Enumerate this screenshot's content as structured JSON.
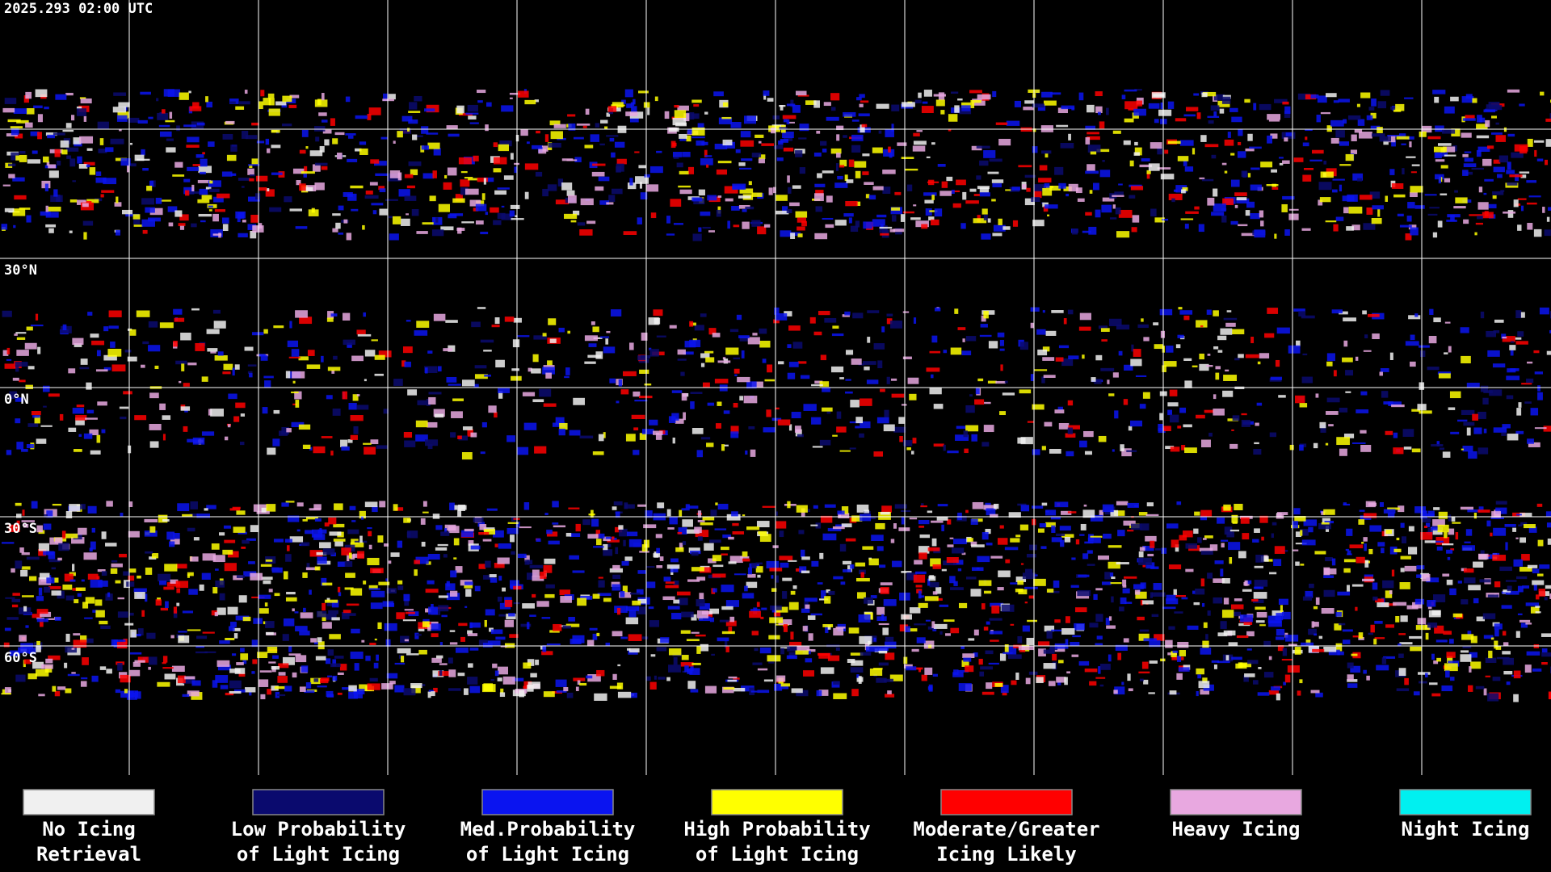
{
  "timestamp": "2025.293 02:00 UTC",
  "latitude_labels": [
    "30°N",
    "0°N",
    "30°S",
    "60°S"
  ],
  "legend": [
    {
      "color": "#f0f0f0",
      "label_lines": [
        "No Icing",
        "Retrieval"
      ]
    },
    {
      "color": "#0a0a6e",
      "label_lines": [
        "Low Probability",
        "of Light Icing"
      ]
    },
    {
      "color": "#0a14f0",
      "label_lines": [
        "Med.Probability",
        "of Light Icing"
      ]
    },
    {
      "color": "#ffff00",
      "label_lines": [
        "High Probability",
        "of Light Icing"
      ]
    },
    {
      "color": "#ff0000",
      "label_lines": [
        "Moderate/Greater",
        "Icing Likely"
      ]
    },
    {
      "color": "#e8a8e0",
      "label_lines": [
        "Heavy Icing"
      ]
    },
    {
      "color": "#00f0f0",
      "label_lines": [
        "Night Icing"
      ]
    }
  ]
}
